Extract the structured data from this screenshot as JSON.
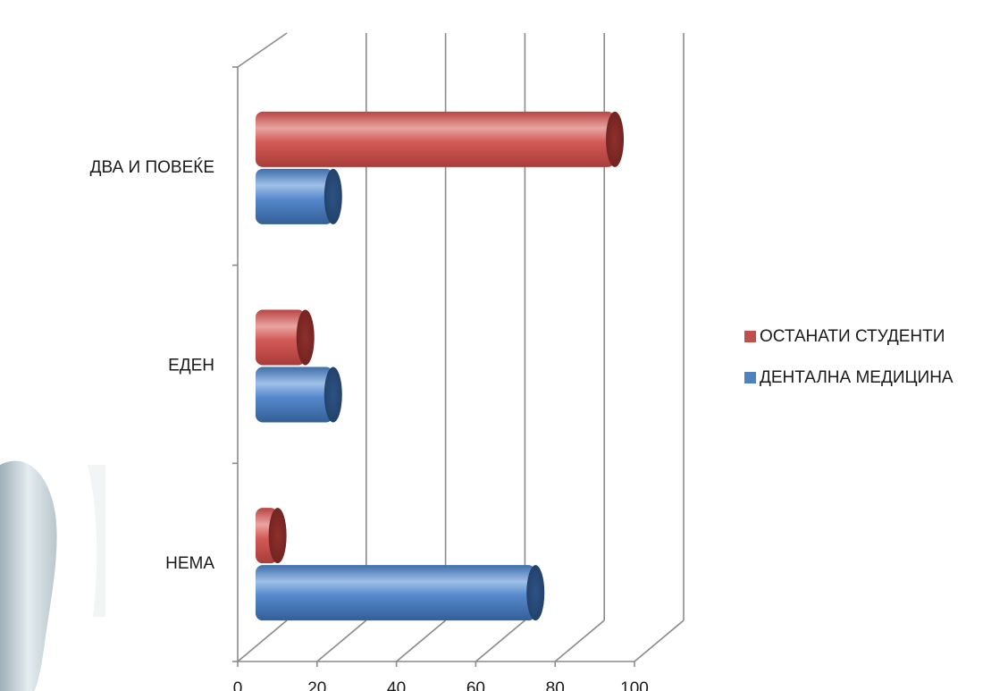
{
  "chart_data": {
    "type": "bar",
    "orientation": "horizontal",
    "style": "3d-cylinder",
    "categories": [
      "ДВА И ПОВЕЌЕ",
      "ЕДЕН",
      "НЕМА"
    ],
    "series": [
      {
        "name": "ОСТАНАТИ СТУДЕНТИ",
        "color": "#c0504d",
        "values": [
          91,
          13,
          6
        ]
      },
      {
        "name": "ДЕНТАЛНА МЕДИЦИНА",
        "color": "#4f81bd",
        "values": [
          20,
          20,
          71
        ]
      }
    ],
    "xlim": [
      0,
      100
    ],
    "xticks": [
      0,
      20,
      40,
      60,
      80,
      100
    ],
    "grid": true,
    "legend_position": "right"
  },
  "decoration": {
    "left_image": "tooth-illustration"
  }
}
